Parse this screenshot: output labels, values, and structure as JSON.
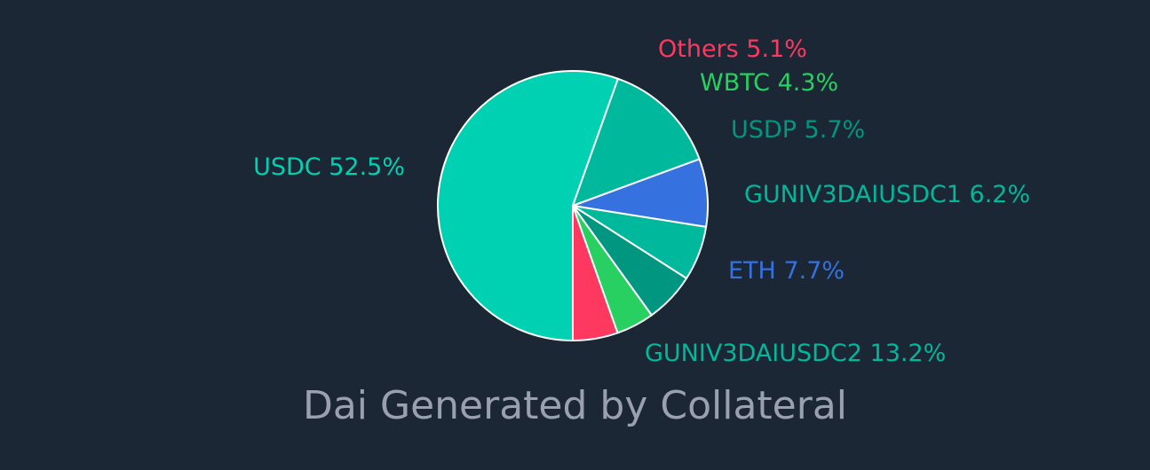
{
  "chart_data": {
    "type": "pie",
    "title": "Dai Generated by Collateral",
    "slices": [
      {
        "name": "USDC",
        "value": 52.5,
        "label": "USDC 52.5%",
        "color": "#00d1b2"
      },
      {
        "name": "GUNIV3DAIUSDC2",
        "value": 13.2,
        "label": "GUNIV3DAIUSDC2 13.2%",
        "color": "#00b89c"
      },
      {
        "name": "ETH",
        "value": 7.7,
        "label": "ETH 7.7%",
        "color": "#3572e0"
      },
      {
        "name": "GUNIV3DAIUSDC1",
        "value": 6.2,
        "label": "GUNIV3DAIUSDC1 6.2%",
        "color": "#00b89c"
      },
      {
        "name": "USDP",
        "value": 5.7,
        "label": "USDP 5.7%",
        "color": "#009680"
      },
      {
        "name": "WBTC",
        "value": 4.3,
        "label": "WBTC 4.3%",
        "color": "#27d061"
      },
      {
        "name": "Others",
        "value": 5.1,
        "label": "Others 5.1%",
        "color": "#ff3860"
      }
    ]
  }
}
